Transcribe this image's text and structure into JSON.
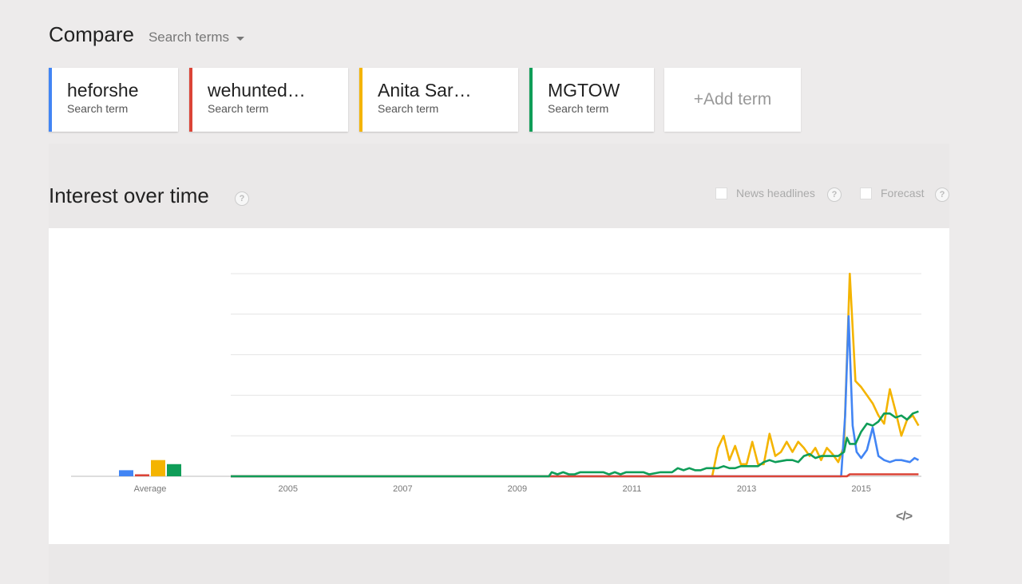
{
  "header": {
    "title": "Compare",
    "search_terms_label": "Search terms"
  },
  "terms": [
    {
      "name": "heforshe",
      "sub": "Search term",
      "color": "#4285f4"
    },
    {
      "name": "wehunted…",
      "sub": "Search term",
      "color": "#db4437"
    },
    {
      "name": "Anita Sar…",
      "sub": "Search term",
      "color": "#f4b400"
    },
    {
      "name": "MGTOW",
      "sub": "Search term",
      "color": "#0f9d58"
    }
  ],
  "add_term_label": "+Add term",
  "section": {
    "title": "Interest over time",
    "help_glyph": "?",
    "news_headlines_label": "News headlines",
    "forecast_label": "Forecast"
  },
  "chart_data": {
    "type": "line",
    "x_ticks": [
      "2005",
      "2007",
      "2009",
      "2011",
      "2013",
      "2015"
    ],
    "ylim": [
      0,
      100
    ],
    "grid": true,
    "average_label": "Average",
    "averages": [
      {
        "term": "heforshe",
        "value": 3
      },
      {
        "term": "wehunted…",
        "value": 1
      },
      {
        "term": "Anita Sar…",
        "value": 8
      },
      {
        "term": "MGTOW",
        "value": 6
      }
    ],
    "series": [
      {
        "name": "heforshe",
        "color": "#4285f4",
        "points": [
          [
            2004.0,
            0
          ],
          [
            2014.65,
            0
          ],
          [
            2014.72,
            30
          ],
          [
            2014.78,
            79
          ],
          [
            2014.85,
            25
          ],
          [
            2014.92,
            12
          ],
          [
            2015.0,
            9
          ],
          [
            2015.1,
            13
          ],
          [
            2015.2,
            24
          ],
          [
            2015.3,
            10
          ],
          [
            2015.4,
            8
          ],
          [
            2015.5,
            7
          ],
          [
            2015.6,
            8
          ],
          [
            2015.7,
            8
          ],
          [
            2015.85,
            7
          ],
          [
            2015.93,
            9
          ],
          [
            2016.0,
            8
          ]
        ]
      },
      {
        "name": "wehunted…",
        "color": "#db4437",
        "points": [
          [
            2004.0,
            0
          ],
          [
            2014.75,
            0
          ],
          [
            2014.8,
            1
          ],
          [
            2016.0,
            1
          ]
        ]
      },
      {
        "name": "Anita Sar…",
        "color": "#f4b400",
        "points": [
          [
            2004.0,
            0
          ],
          [
            2012.4,
            0
          ],
          [
            2012.5,
            14
          ],
          [
            2012.6,
            20
          ],
          [
            2012.7,
            8
          ],
          [
            2012.8,
            15
          ],
          [
            2012.9,
            6
          ],
          [
            2013.0,
            6
          ],
          [
            2013.1,
            17
          ],
          [
            2013.2,
            6
          ],
          [
            2013.3,
            6
          ],
          [
            2013.4,
            21
          ],
          [
            2013.5,
            10
          ],
          [
            2013.6,
            12
          ],
          [
            2013.7,
            17
          ],
          [
            2013.8,
            12
          ],
          [
            2013.9,
            17
          ],
          [
            2014.0,
            14
          ],
          [
            2014.1,
            10
          ],
          [
            2014.2,
            14
          ],
          [
            2014.3,
            8
          ],
          [
            2014.4,
            14
          ],
          [
            2014.5,
            11
          ],
          [
            2014.6,
            7
          ],
          [
            2014.7,
            15
          ],
          [
            2014.8,
            100
          ],
          [
            2014.9,
            47
          ],
          [
            2015.0,
            44
          ],
          [
            2015.1,
            40
          ],
          [
            2015.2,
            36
          ],
          [
            2015.3,
            30
          ],
          [
            2015.4,
            26
          ],
          [
            2015.5,
            43
          ],
          [
            2015.6,
            32
          ],
          [
            2015.7,
            20
          ],
          [
            2015.8,
            28
          ],
          [
            2015.9,
            30
          ],
          [
            2016.0,
            25
          ]
        ]
      },
      {
        "name": "MGTOW",
        "color": "#0f9d58",
        "points": [
          [
            2004.0,
            0
          ],
          [
            2009.55,
            0
          ],
          [
            2009.6,
            2
          ],
          [
            2009.7,
            1
          ],
          [
            2009.8,
            2
          ],
          [
            2009.9,
            1
          ],
          [
            2010.0,
            1
          ],
          [
            2010.1,
            2
          ],
          [
            2010.3,
            2
          ],
          [
            2010.5,
            2
          ],
          [
            2010.6,
            1
          ],
          [
            2010.7,
            2
          ],
          [
            2010.8,
            1
          ],
          [
            2010.9,
            2
          ],
          [
            2011.0,
            2
          ],
          [
            2011.2,
            2
          ],
          [
            2011.3,
            1
          ],
          [
            2011.5,
            2
          ],
          [
            2011.7,
            2
          ],
          [
            2011.8,
            4
          ],
          [
            2011.9,
            3
          ],
          [
            2012.0,
            4
          ],
          [
            2012.1,
            3
          ],
          [
            2012.2,
            3
          ],
          [
            2012.3,
            4
          ],
          [
            2012.5,
            4
          ],
          [
            2012.6,
            5
          ],
          [
            2012.7,
            4
          ],
          [
            2012.8,
            4
          ],
          [
            2012.9,
            5
          ],
          [
            2013.0,
            5
          ],
          [
            2013.2,
            5
          ],
          [
            2013.3,
            7
          ],
          [
            2013.4,
            8
          ],
          [
            2013.5,
            7
          ],
          [
            2013.7,
            8
          ],
          [
            2013.8,
            8
          ],
          [
            2013.9,
            7
          ],
          [
            2014.0,
            10
          ],
          [
            2014.1,
            11
          ],
          [
            2014.2,
            9
          ],
          [
            2014.3,
            10
          ],
          [
            2014.5,
            10
          ],
          [
            2014.6,
            10
          ],
          [
            2014.7,
            12
          ],
          [
            2014.75,
            19
          ],
          [
            2014.8,
            16
          ],
          [
            2014.9,
            16
          ],
          [
            2015.0,
            22
          ],
          [
            2015.1,
            26
          ],
          [
            2015.2,
            25
          ],
          [
            2015.3,
            27
          ],
          [
            2015.4,
            31
          ],
          [
            2015.5,
            31
          ],
          [
            2015.6,
            29
          ],
          [
            2015.7,
            30
          ],
          [
            2015.8,
            28
          ],
          [
            2015.9,
            31
          ],
          [
            2016.0,
            32
          ]
        ]
      }
    ]
  },
  "embed_glyph": "</>"
}
